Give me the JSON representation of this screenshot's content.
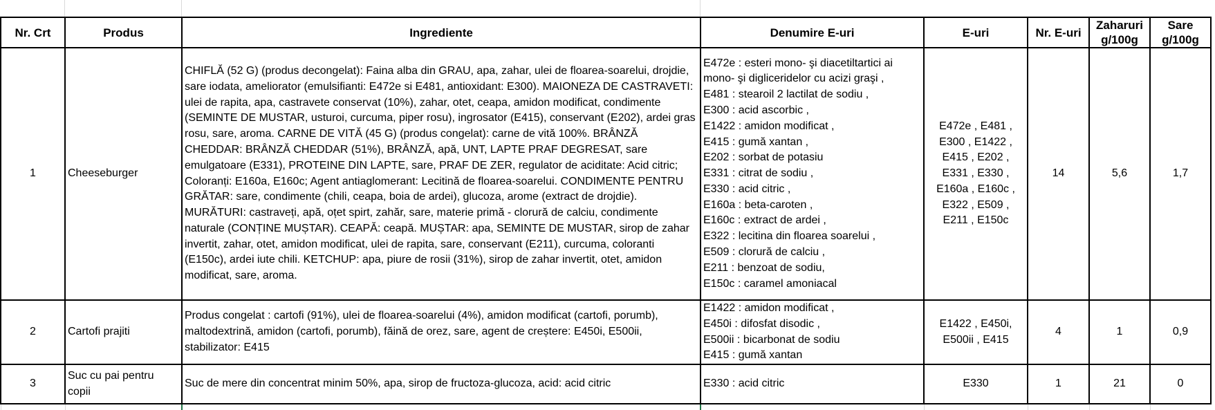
{
  "headers": [
    "Nr. Crt",
    "Produs",
    "Ingrediente",
    "Denumire E-uri",
    "E-uri",
    "Nr. E-uri",
    "Zaharuri g/100g",
    "Sare g/100g"
  ],
  "rows": [
    {
      "nr": "1",
      "produs": "Cheeseburger",
      "ingrediente": "CHIFLĂ (52 G) (produs decongelat): Faina alba din GRAU, apa, zahar, ulei de floarea-soarelui, drojdie, sare iodata, ameliorator (emulsifianti: E472e si E481, antioxidant: E300). MAIONEZA DE CASTRAVETI: ulei de rapita, apa, castravete conservat (10%), zahar, otet, ceapa, amidon modificat, condimente (SEMINTE DE MUSTAR, usturoi, curcuma, piper rosu), ingrosator (E415), conservant (E202), ardei gras rosu, sare, aroma. CARNE DE VITĂ (45 G) (produs congelat): carne de vită 100%. BRÂNZĂ CHEDDAR: BRÂNZĂ CHEDDAR (51%), BRÂNZĂ, apă, UNT, LAPTE PRAF DEGRESAT, sare emulgatoare (E331), PROTEINE DIN LAPTE, sare, PRAF DE ZER, regulator de aciditate: Acid citric; Coloranți: E160a, E160c; Agent antiaglomerant: Lecitină de floarea-soarelui. CONDIMENTE PENTRU GRĂTAR: sare, condimente (chili, ceapa, boia de ardei), glucoza, arome (extract de drojdie). MURĂTURI: castraveți, apă, oțet spirt, zahăr, sare, materie primă - clorură de calciu, condimente naturale (CONȚINE MUȘTAR). CEAPĂ: ceapă. MUȘTAR: apa, SEMINTE DE MUSTAR, sirop de zahar invertit, zahar, otet, amidon modificat, ulei de rapita, sare, conservant (E211), curcuma, coloranti (E150c), ardei iute chili. KETCHUP: apa, piure de rosii (31%), sirop de zahar invertit, otet, amidon modificat, sare, aroma.",
      "denumire": [
        "E472e : esteri mono- şi diacetiltartici ai mono- şi digliceridelor cu acizi graşi ,",
        "E481 : stearoil 2 lactilat de sodiu ,",
        "E300 : acid ascorbic ,",
        "E1422 : amidon modificat ,",
        "E415 : gumă xantan ,",
        "E202 : sorbat de potasiu",
        "E331 : citrat de sodiu ,",
        "E330 : acid citric ,",
        "E160a : beta-caroten  ,",
        "E160c : extract de ardei ,",
        "E322 : lecitina din floarea soarelui ,",
        "E509 : clorură de calciu  ,",
        "E211 : benzoat de sodiu,",
        "E150c : caramel amoniacal"
      ],
      "euri": "E472e , E481 , E300 , E1422 , E415 , E202 , E331 , E330 , E160a , E160c , E322 , E509 , E211 , E150c",
      "nr_euri": "14",
      "zaharuri": "5,6",
      "sare": "1,7"
    },
    {
      "nr": "2",
      "produs": "Cartofi prajiti",
      "ingrediente": "Produs congelat : cartofi (91%), ulei de floarea-soarelui (4%), amidon modificat (cartofi, porumb), maltodextrină, amidon (cartofi, porumb), făină de orez, sare, agent de creștere: E450i, E500ii, stabilizator: E415",
      "denumire": [
        "E1422 : amidon modificat  ,",
        "E450i : difosfat disodic ,",
        "E500ii : bicarbonat de sodiu",
        "E415 : gumă xantan"
      ],
      "euri": "E1422 , E450i, E500ii , E415",
      "nr_euri": "4",
      "zaharuri": "1",
      "sare": "0,9"
    },
    {
      "nr": "3",
      "produs": "Suc cu pai pentru copii",
      "ingrediente": "Suc de mere din concentrat minim 50%, apa, sirop de fructoza-glucoza, acid: acid citric",
      "denumire": [
        "E330 : acid citric"
      ],
      "euri": "E330",
      "nr_euri": "1",
      "zaharuri": "21",
      "sare": "0"
    }
  ],
  "colors": {
    "grid": "#d9d9d9",
    "border": "#000000",
    "selection": "#217346"
  }
}
